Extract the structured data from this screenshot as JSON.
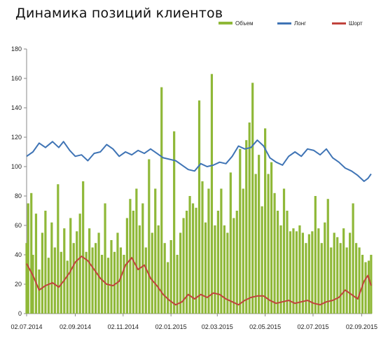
{
  "chart_data": {
    "type": "bar",
    "title": "Динамика позиций клиентов",
    "xlabel": "",
    "ylabel": "",
    "ylim": [
      0,
      180
    ],
    "yticks": [
      0,
      20,
      40,
      60,
      80,
      100,
      120,
      140,
      160,
      180
    ],
    "xlim": [
      "2014-07-02",
      "2015-09-15"
    ],
    "xtick_labels": [
      "02.07.2014",
      "02.09.2014",
      "02.11.2014",
      "02.01.2015",
      "02.03.2015",
      "02.05.2015",
      "02.07.2015",
      "02.09.2015"
    ],
    "grid": false,
    "legend_position": "top-right",
    "colors": {
      "volume": "#8fb838",
      "long": "#3f74b5",
      "short": "#c0433c"
    },
    "series": [
      {
        "name": "Объем",
        "type": "bar",
        "note": "daily volume bars, sampled values",
        "points": [
          [
            "2014-07-02",
            48
          ],
          [
            "2014-07-04",
            75
          ],
          [
            "2014-07-08",
            82
          ],
          [
            "2014-07-10",
            40
          ],
          [
            "2014-07-14",
            68
          ],
          [
            "2014-07-18",
            30
          ],
          [
            "2014-07-22",
            55
          ],
          [
            "2014-07-26",
            70
          ],
          [
            "2014-07-30",
            38
          ],
          [
            "2014-08-03",
            62
          ],
          [
            "2014-08-07",
            45
          ],
          [
            "2014-08-11",
            88
          ],
          [
            "2014-08-15",
            42
          ],
          [
            "2014-08-19",
            58
          ],
          [
            "2014-08-23",
            36
          ],
          [
            "2014-08-27",
            65
          ],
          [
            "2014-08-31",
            48
          ],
          [
            "2014-09-04",
            56
          ],
          [
            "2014-09-08",
            68
          ],
          [
            "2014-09-12",
            90
          ],
          [
            "2014-09-16",
            42
          ],
          [
            "2014-09-20",
            58
          ],
          [
            "2014-09-24",
            45
          ],
          [
            "2014-09-28",
            48
          ],
          [
            "2014-10-02",
            55
          ],
          [
            "2014-10-06",
            40
          ],
          [
            "2014-10-10",
            75
          ],
          [
            "2014-10-14",
            38
          ],
          [
            "2014-10-18",
            50
          ],
          [
            "2014-10-22",
            42
          ],
          [
            "2014-10-26",
            55
          ],
          [
            "2014-10-30",
            45
          ],
          [
            "2014-11-03",
            40
          ],
          [
            "2014-11-07",
            65
          ],
          [
            "2014-11-11",
            78
          ],
          [
            "2014-11-15",
            70
          ],
          [
            "2014-11-19",
            85
          ],
          [
            "2014-11-23",
            60
          ],
          [
            "2014-11-27",
            75
          ],
          [
            "2014-12-01",
            45
          ],
          [
            "2014-12-05",
            105
          ],
          [
            "2014-12-09",
            55
          ],
          [
            "2014-12-13",
            85
          ],
          [
            "2014-12-17",
            60
          ],
          [
            "2014-12-21",
            154
          ],
          [
            "2014-12-25",
            48
          ],
          [
            "2014-12-29",
            35
          ],
          [
            "2015-01-02",
            50
          ],
          [
            "2015-01-06",
            124
          ],
          [
            "2015-01-10",
            40
          ],
          [
            "2015-01-14",
            55
          ],
          [
            "2015-01-18",
            65
          ],
          [
            "2015-01-22",
            70
          ],
          [
            "2015-01-26",
            80
          ],
          [
            "2015-01-30",
            75
          ],
          [
            "2015-02-03",
            72
          ],
          [
            "2015-02-07",
            145
          ],
          [
            "2015-02-11",
            90
          ],
          [
            "2015-02-15",
            62
          ],
          [
            "2015-02-19",
            85
          ],
          [
            "2015-02-23",
            163
          ],
          [
            "2015-02-27",
            60
          ],
          [
            "2015-03-03",
            70
          ],
          [
            "2015-03-07",
            85
          ],
          [
            "2015-03-11",
            60
          ],
          [
            "2015-03-15",
            55
          ],
          [
            "2015-03-19",
            96
          ],
          [
            "2015-03-23",
            65
          ],
          [
            "2015-03-27",
            70
          ],
          [
            "2015-03-31",
            112
          ],
          [
            "2015-04-04",
            85
          ],
          [
            "2015-04-08",
            118
          ],
          [
            "2015-04-12",
            130
          ],
          [
            "2015-04-16",
            157
          ],
          [
            "2015-04-20",
            95
          ],
          [
            "2015-04-24",
            108
          ],
          [
            "2015-04-28",
            73
          ],
          [
            "2015-05-02",
            126
          ],
          [
            "2015-05-06",
            95
          ],
          [
            "2015-05-10",
            103
          ],
          [
            "2015-05-14",
            82
          ],
          [
            "2015-05-18",
            70
          ],
          [
            "2015-05-22",
            60
          ],
          [
            "2015-05-26",
            85
          ],
          [
            "2015-05-30",
            70
          ],
          [
            "2015-06-03",
            56
          ],
          [
            "2015-06-07",
            58
          ],
          [
            "2015-06-11",
            56
          ],
          [
            "2015-06-15",
            60
          ],
          [
            "2015-06-19",
            55
          ],
          [
            "2015-06-23",
            48
          ],
          [
            "2015-06-27",
            54
          ],
          [
            "2015-07-01",
            56
          ],
          [
            "2015-07-05",
            80
          ],
          [
            "2015-07-09",
            58
          ],
          [
            "2015-07-13",
            48
          ],
          [
            "2015-07-17",
            62
          ],
          [
            "2015-07-21",
            78
          ],
          [
            "2015-07-25",
            45
          ],
          [
            "2015-07-29",
            55
          ],
          [
            "2015-08-02",
            52
          ],
          [
            "2015-08-06",
            48
          ],
          [
            "2015-08-10",
            58
          ],
          [
            "2015-08-14",
            45
          ],
          [
            "2015-08-18",
            55
          ],
          [
            "2015-08-22",
            75
          ],
          [
            "2015-08-26",
            48
          ],
          [
            "2015-08-30",
            45
          ],
          [
            "2015-09-03",
            40
          ],
          [
            "2015-09-07",
            35
          ],
          [
            "2015-09-11",
            36
          ],
          [
            "2015-09-14",
            40
          ]
        ]
      },
      {
        "name": "Лонг",
        "type": "line",
        "points": [
          [
            "2014-07-02",
            107
          ],
          [
            "2014-07-10",
            110
          ],
          [
            "2014-07-18",
            116
          ],
          [
            "2014-07-26",
            113
          ],
          [
            "2014-08-04",
            117
          ],
          [
            "2014-08-12",
            113
          ],
          [
            "2014-08-18",
            117
          ],
          [
            "2014-08-26",
            111
          ],
          [
            "2014-09-02",
            107
          ],
          [
            "2014-09-10",
            108
          ],
          [
            "2014-09-18",
            104
          ],
          [
            "2014-09-26",
            109
          ],
          [
            "2014-10-04",
            110
          ],
          [
            "2014-10-12",
            115
          ],
          [
            "2014-10-20",
            112
          ],
          [
            "2014-10-28",
            107
          ],
          [
            "2014-11-05",
            110
          ],
          [
            "2014-11-13",
            108
          ],
          [
            "2014-11-21",
            111
          ],
          [
            "2014-11-29",
            109
          ],
          [
            "2014-12-07",
            112
          ],
          [
            "2014-12-15",
            109
          ],
          [
            "2014-12-23",
            106
          ],
          [
            "2014-12-31",
            105
          ],
          [
            "2015-01-08",
            104
          ],
          [
            "2015-01-16",
            101
          ],
          [
            "2015-01-24",
            98
          ],
          [
            "2015-02-01",
            97
          ],
          [
            "2015-02-09",
            102
          ],
          [
            "2015-02-17",
            100
          ],
          [
            "2015-02-25",
            101
          ],
          [
            "2015-03-05",
            103
          ],
          [
            "2015-03-13",
            102
          ],
          [
            "2015-03-21",
            107
          ],
          [
            "2015-03-29",
            114
          ],
          [
            "2015-04-06",
            112
          ],
          [
            "2015-04-14",
            113
          ],
          [
            "2015-04-22",
            118
          ],
          [
            "2015-04-30",
            114
          ],
          [
            "2015-05-08",
            106
          ],
          [
            "2015-05-16",
            103
          ],
          [
            "2015-05-24",
            101
          ],
          [
            "2015-06-01",
            107
          ],
          [
            "2015-06-09",
            110
          ],
          [
            "2015-06-17",
            107
          ],
          [
            "2015-06-25",
            112
          ],
          [
            "2015-07-03",
            111
          ],
          [
            "2015-07-11",
            108
          ],
          [
            "2015-07-19",
            112
          ],
          [
            "2015-07-27",
            106
          ],
          [
            "2015-08-04",
            103
          ],
          [
            "2015-08-12",
            99
          ],
          [
            "2015-08-20",
            97
          ],
          [
            "2015-08-28",
            94
          ],
          [
            "2015-09-05",
            90
          ],
          [
            "2015-09-10",
            92
          ],
          [
            "2015-09-14",
            95
          ]
        ]
      },
      {
        "name": "Шорт",
        "type": "line",
        "points": [
          [
            "2014-07-02",
            34
          ],
          [
            "2014-07-10",
            26
          ],
          [
            "2014-07-18",
            16
          ],
          [
            "2014-07-26",
            19
          ],
          [
            "2014-08-04",
            21
          ],
          [
            "2014-08-12",
            18
          ],
          [
            "2014-08-18",
            22
          ],
          [
            "2014-08-26",
            28
          ],
          [
            "2014-09-02",
            35
          ],
          [
            "2014-09-10",
            39
          ],
          [
            "2014-09-18",
            36
          ],
          [
            "2014-09-26",
            30
          ],
          [
            "2014-10-04",
            24
          ],
          [
            "2014-10-12",
            20
          ],
          [
            "2014-10-20",
            19
          ],
          [
            "2014-10-28",
            22
          ],
          [
            "2014-11-05",
            33
          ],
          [
            "2014-11-13",
            38
          ],
          [
            "2014-11-21",
            30
          ],
          [
            "2014-11-29",
            33
          ],
          [
            "2014-12-07",
            24
          ],
          [
            "2014-12-15",
            19
          ],
          [
            "2014-12-23",
            13
          ],
          [
            "2014-12-31",
            9
          ],
          [
            "2015-01-08",
            6
          ],
          [
            "2015-01-16",
            8
          ],
          [
            "2015-01-24",
            13
          ],
          [
            "2015-02-01",
            10
          ],
          [
            "2015-02-09",
            13
          ],
          [
            "2015-02-17",
            11
          ],
          [
            "2015-02-25",
            14
          ],
          [
            "2015-03-05",
            13
          ],
          [
            "2015-03-13",
            10
          ],
          [
            "2015-03-21",
            8
          ],
          [
            "2015-03-29",
            6
          ],
          [
            "2015-04-06",
            9
          ],
          [
            "2015-04-14",
            11
          ],
          [
            "2015-04-22",
            12
          ],
          [
            "2015-04-30",
            12
          ],
          [
            "2015-05-08",
            9
          ],
          [
            "2015-05-16",
            7
          ],
          [
            "2015-05-24",
            8
          ],
          [
            "2015-06-01",
            9
          ],
          [
            "2015-06-09",
            7
          ],
          [
            "2015-06-17",
            8
          ],
          [
            "2015-06-25",
            9
          ],
          [
            "2015-07-03",
            7
          ],
          [
            "2015-07-11",
            6
          ],
          [
            "2015-07-19",
            8
          ],
          [
            "2015-07-27",
            9
          ],
          [
            "2015-08-04",
            11
          ],
          [
            "2015-08-12",
            16
          ],
          [
            "2015-08-20",
            13
          ],
          [
            "2015-08-28",
            10
          ],
          [
            "2015-09-05",
            22
          ],
          [
            "2015-09-10",
            26
          ],
          [
            "2015-09-14",
            19
          ]
        ]
      }
    ]
  }
}
